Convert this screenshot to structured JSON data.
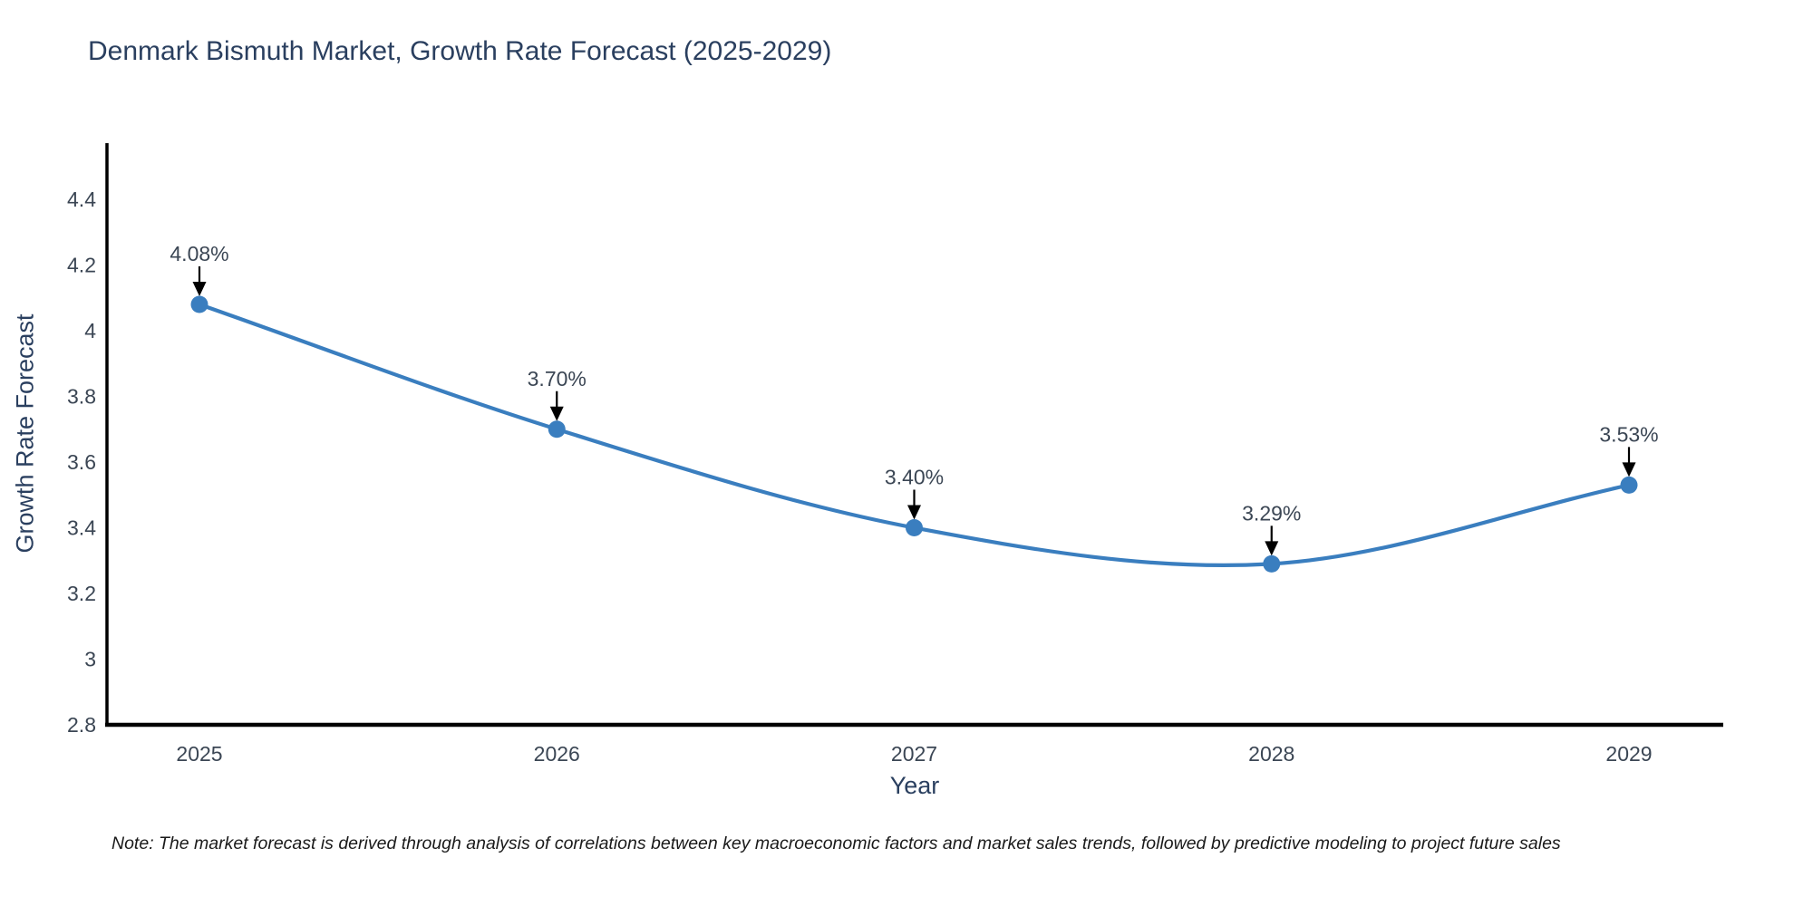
{
  "note": "Note: The market forecast is derived through analysis of correlations between key macroeconomic factors and market sales trends, followed by predictive modeling to project future sales",
  "chart_data": {
    "type": "line",
    "title": "Denmark Bismuth Market, Growth Rate Forecast (2025-2029)",
    "xlabel": "Year",
    "ylabel": "Growth Rate Forecast",
    "categories": [
      "2025",
      "2026",
      "2027",
      "2028",
      "2029"
    ],
    "values": [
      4.08,
      3.7,
      3.4,
      3.29,
      3.53
    ],
    "point_labels": [
      "4.08%",
      "3.70%",
      "3.40%",
      "3.29%",
      "3.53%"
    ],
    "ylim": [
      2.8,
      4.4
    ],
    "yticks": [
      2.8,
      3,
      3.2,
      3.4,
      3.6,
      3.8,
      4,
      4.2,
      4.4
    ],
    "line_shape": "spline",
    "grid": false,
    "legend_position": "none",
    "colors": {
      "line": "#3a7ebf",
      "marker": "#3a7ebf",
      "axis_line": "#000000",
      "tick_label": "#3b4654",
      "annotation_text": "#3b4654",
      "annotation_arrow": "#000000",
      "title": "#2a3f5f"
    }
  }
}
